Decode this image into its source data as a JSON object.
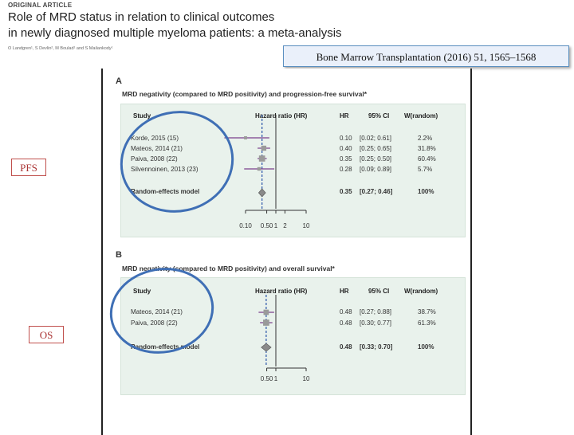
{
  "header": {
    "article_type": "ORIGINAL ARTICLE",
    "title_line1": "Role of MRD status in relation to clinical outcomes",
    "title_line2": "in newly diagnosed multiple myeloma patients: a meta-analysis",
    "authors": "O Landgren¹, S Devlin², M Boulad¹ and S Mailankody¹"
  },
  "citation": "Bone Marrow Transplantation (2016) 51, 1565–1568",
  "tags": {
    "pfs": "PFS",
    "os": "OS"
  },
  "panel_a": {
    "letter": "A",
    "title": "MRD negativity (compared to MRD positivity) and progression-free survival*",
    "headers": {
      "study": "Study",
      "hr_plot": "Hazard ratio (HR)",
      "hr": "HR",
      "ci": "95% CI",
      "weight": "W(random)"
    },
    "rows": [
      {
        "study": "Korde, 2015 (15)",
        "hr": "0.10",
        "ci": "[0.02; 0.61]",
        "weight": "2.2%"
      },
      {
        "study": "Mateos, 2014 (21)",
        "hr": "0.40",
        "ci": "[0.25; 0.65]",
        "weight": "31.8%"
      },
      {
        "study": "Paiva, 2008 (22)",
        "hr": "0.35",
        "ci": "[0.25; 0.50]",
        "weight": "60.4%"
      },
      {
        "study": "Silvennoinen, 2013 (23)",
        "hr": "0.28",
        "ci": "[0.09; 0.89]",
        "weight": "5.7%"
      }
    ],
    "model": {
      "label": "Random-effects model",
      "hr": "0.35",
      "ci": "[0.27; 0.46]",
      "weight": "100%"
    },
    "axis_ticks": [
      "0.10",
      "0.50",
      "1",
      "2",
      "10"
    ]
  },
  "panel_b": {
    "letter": "B",
    "title": "MRD negativity (compared to MRD positivity) and overall survival*",
    "headers": {
      "study": "Study",
      "hr_plot": "Hazard ratio (HR)",
      "hr": "HR",
      "ci": "95% CI",
      "weight": "W(random)"
    },
    "rows": [
      {
        "study": "Mateos, 2014 (21)",
        "hr": "0.48",
        "ci": "[0.27; 0.88]",
        "weight": "38.7%"
      },
      {
        "study": "Paiva, 2008 (22)",
        "hr": "0.48",
        "ci": "[0.30; 0.77]",
        "weight": "61.3%"
      }
    ],
    "model": {
      "label": "Random-effects model",
      "hr": "0.48",
      "ci": "[0.33; 0.70]",
      "weight": "100%"
    },
    "axis_ticks": [
      "0.50",
      "1",
      "10"
    ]
  },
  "colors": {
    "study_line": "#7b3f8c",
    "study_box": "#9a9a9a",
    "null_line": "#333333",
    "pooled_line": "#2b55a8",
    "annotation_circle": "#3f6fb5",
    "tag_border": "#c0504d"
  },
  "chart_data": [
    {
      "type": "forest",
      "scale": "log",
      "xlabel": "Hazard ratio (HR)",
      "ticks": [
        0.1,
        0.5,
        1,
        2,
        10
      ],
      "studies": [
        {
          "name": "Korde, 2015 (15)",
          "hr": 0.1,
          "ci": [
            0.02,
            0.61
          ],
          "weight": 2.2
        },
        {
          "name": "Mateos, 2014 (21)",
          "hr": 0.4,
          "ci": [
            0.25,
            0.65
          ],
          "weight": 31.8
        },
        {
          "name": "Paiva, 2008 (22)",
          "hr": 0.35,
          "ci": [
            0.25,
            0.5
          ],
          "weight": 60.4
        },
        {
          "name": "Silvennoinen, 2013 (23)",
          "hr": 0.28,
          "ci": [
            0.09,
            0.89
          ],
          "weight": 5.7
        }
      ],
      "pooled": {
        "name": "Random-effects model",
        "hr": 0.35,
        "ci": [
          0.27,
          0.46
        ],
        "weight": 100
      }
    },
    {
      "type": "forest",
      "scale": "log",
      "xlabel": "Hazard ratio (HR)",
      "ticks": [
        0.5,
        1,
        10
      ],
      "studies": [
        {
          "name": "Mateos, 2014 (21)",
          "hr": 0.48,
          "ci": [
            0.27,
            0.88
          ],
          "weight": 38.7
        },
        {
          "name": "Paiva, 2008 (22)",
          "hr": 0.48,
          "ci": [
            0.3,
            0.77
          ],
          "weight": 61.3
        }
      ],
      "pooled": {
        "name": "Random-effects model",
        "hr": 0.48,
        "ci": [
          0.33,
          0.7
        ],
        "weight": 100
      }
    }
  ]
}
